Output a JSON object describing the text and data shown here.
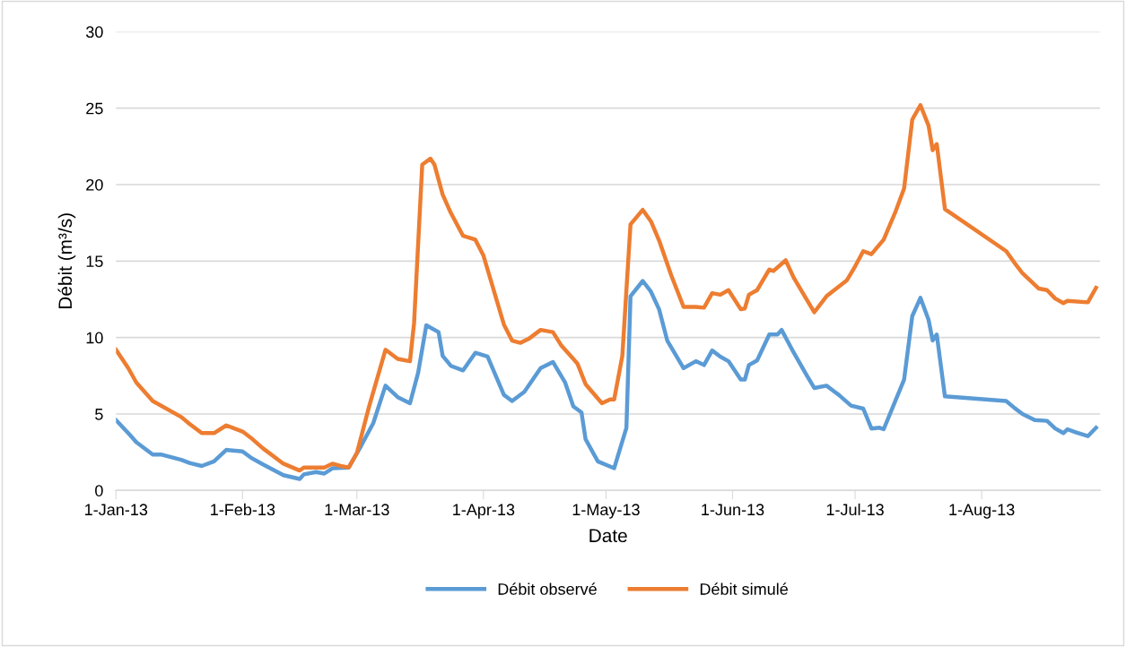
{
  "chart_data": {
    "type": "line",
    "xlabel": "Date",
    "ylabel": "Débit (m³/s)",
    "xlim": [
      "2013-01-01",
      "2013-08-30"
    ],
    "xticks": [
      {
        "value": "2013-01-01",
        "label": "1-Jan-13"
      },
      {
        "value": "2013-02-01",
        "label": "1-Feb-13"
      },
      {
        "value": "2013-03-01",
        "label": "1-Mar-13"
      },
      {
        "value": "2013-04-01",
        "label": "1-Apr-13"
      },
      {
        "value": "2013-05-01",
        "label": "1-May-13"
      },
      {
        "value": "2013-06-01",
        "label": "1-Jun-13"
      },
      {
        "value": "2013-07-01",
        "label": "1-Jul-13"
      },
      {
        "value": "2013-08-01",
        "label": "1-Aug-13"
      }
    ],
    "ylim": [
      0,
      30
    ],
    "yticks": [
      0,
      5,
      10,
      15,
      20,
      25,
      30
    ],
    "grid": "y",
    "legend": "bottom",
    "marker": "none",
    "line_style": "solid",
    "series": [
      {
        "name": "Débit observé",
        "color": "#5b9bd5",
        "x": [
          "2013-01-01",
          "2013-01-04",
          "2013-01-06",
          "2013-01-10",
          "2013-01-12",
          "2013-01-17",
          "2013-01-19",
          "2013-01-22",
          "2013-01-25",
          "2013-01-28",
          "2013-02-01",
          "2013-02-03",
          "2013-02-06",
          "2013-02-11",
          "2013-02-15",
          "2013-02-16",
          "2013-02-19",
          "2013-02-21",
          "2013-02-23",
          "2013-02-27",
          "2013-03-02",
          "2013-03-05",
          "2013-03-08",
          "2013-03-11",
          "2013-03-14",
          "2013-03-16",
          "2013-03-18",
          "2013-03-21",
          "2013-03-22",
          "2013-03-24",
          "2013-03-27",
          "2013-03-30",
          "2013-04-02",
          "2013-04-06",
          "2013-04-08",
          "2013-04-11",
          "2013-04-15",
          "2013-04-18",
          "2013-04-21",
          "2013-04-23",
          "2013-04-25",
          "2013-04-26",
          "2013-04-29",
          "2013-05-03",
          "2013-05-06",
          "2013-05-07",
          "2013-05-10",
          "2013-05-12",
          "2013-05-14",
          "2013-05-16",
          "2013-05-20",
          "2013-05-23",
          "2013-05-25",
          "2013-05-27",
          "2013-05-29",
          "2013-05-31",
          "2013-06-03",
          "2013-06-04",
          "2013-06-05",
          "2013-06-07",
          "2013-06-10",
          "2013-06-12",
          "2013-06-13",
          "2013-06-16",
          "2013-06-19",
          "2013-06-21",
          "2013-06-24",
          "2013-06-26",
          "2013-06-27",
          "2013-06-30",
          "2013-07-03",
          "2013-07-05",
          "2013-07-07",
          "2013-07-08",
          "2013-07-10",
          "2013-07-13",
          "2013-07-15",
          "2013-07-17",
          "2013-07-19",
          "2013-07-20",
          "2013-07-21",
          "2013-07-23",
          "2013-08-07",
          "2013-08-09",
          "2013-08-11",
          "2013-08-14",
          "2013-08-17",
          "2013-08-19",
          "2013-08-21",
          "2013-08-22",
          "2013-08-24",
          "2013-08-27",
          "2013-08-29"
        ],
        "values": [
          4.6,
          3.75,
          3.15,
          2.35,
          2.35,
          2.0,
          1.8,
          1.6,
          1.9,
          2.65,
          2.55,
          2.15,
          1.7,
          1.0,
          0.75,
          1.05,
          1.2,
          1.1,
          1.45,
          1.5,
          2.9,
          4.4,
          6.85,
          6.1,
          5.7,
          7.7,
          10.8,
          10.35,
          8.8,
          8.15,
          7.85,
          9.0,
          8.75,
          6.25,
          5.85,
          6.45,
          8.0,
          8.4,
          7.05,
          5.5,
          5.1,
          3.35,
          1.9,
          1.45,
          4.1,
          12.7,
          13.7,
          13.0,
          11.85,
          9.8,
          8.0,
          8.45,
          8.2,
          9.15,
          8.75,
          8.45,
          7.25,
          7.25,
          8.2,
          8.5,
          10.2,
          10.2,
          10.5,
          9.0,
          7.6,
          6.7,
          6.85,
          6.45,
          6.25,
          5.55,
          5.35,
          4.05,
          4.1,
          4.0,
          5.3,
          7.25,
          11.4,
          12.6,
          11.15,
          9.8,
          10.2,
          6.15,
          5.85,
          5.4,
          5.0,
          4.6,
          4.55,
          4.05,
          3.75,
          4.0,
          3.8,
          3.55,
          4.1
        ]
      },
      {
        "name": "Débit simulé",
        "color": "#ed7d31",
        "x": [
          "2013-01-01",
          "2013-01-04",
          "2013-01-06",
          "2013-01-10",
          "2013-01-17",
          "2013-01-19",
          "2013-01-22",
          "2013-01-25",
          "2013-01-28",
          "2013-02-01",
          "2013-02-03",
          "2013-02-06",
          "2013-02-11",
          "2013-02-15",
          "2013-02-16",
          "2013-02-21",
          "2013-02-23",
          "2013-02-25",
          "2013-02-27",
          "2013-03-01",
          "2013-03-04",
          "2013-03-08",
          "2013-03-11",
          "2013-03-14",
          "2013-03-15",
          "2013-03-17",
          "2013-03-19",
          "2013-03-20",
          "2013-03-22",
          "2013-03-24",
          "2013-03-27",
          "2013-03-30",
          "2013-04-01",
          "2013-04-06",
          "2013-04-08",
          "2013-04-10",
          "2013-04-12",
          "2013-04-15",
          "2013-04-18",
          "2013-04-20",
          "2013-04-23",
          "2013-04-24",
          "2013-04-26",
          "2013-04-30",
          "2013-05-02",
          "2013-05-03",
          "2013-05-05",
          "2013-05-07",
          "2013-05-10",
          "2013-05-12",
          "2013-05-14",
          "2013-05-17",
          "2013-05-20",
          "2013-05-23",
          "2013-05-25",
          "2013-05-27",
          "2013-05-29",
          "2013-05-31",
          "2013-06-03",
          "2013-06-04",
          "2013-06-05",
          "2013-06-07",
          "2013-06-10",
          "2013-06-11",
          "2013-06-14",
          "2013-06-16",
          "2013-06-19",
          "2013-06-21",
          "2013-06-24",
          "2013-06-29",
          "2013-07-01",
          "2013-07-03",
          "2013-07-05",
          "2013-07-08",
          "2013-07-11",
          "2013-07-13",
          "2013-07-15",
          "2013-07-17",
          "2013-07-19",
          "2013-07-20",
          "2013-07-21",
          "2013-07-23",
          "2013-08-07",
          "2013-08-09",
          "2013-08-11",
          "2013-08-15",
          "2013-08-17",
          "2013-08-19",
          "2013-08-21",
          "2013-08-22",
          "2013-08-27",
          "2013-08-29"
        ],
        "values": [
          9.2,
          8.0,
          7.05,
          5.85,
          4.8,
          4.35,
          3.75,
          3.75,
          4.25,
          3.85,
          3.45,
          2.75,
          1.75,
          1.3,
          1.5,
          1.5,
          1.75,
          1.6,
          1.5,
          2.45,
          5.5,
          9.2,
          8.6,
          8.45,
          10.95,
          21.3,
          21.7,
          21.3,
          19.35,
          18.15,
          16.65,
          16.4,
          15.35,
          10.85,
          9.8,
          9.65,
          9.9,
          10.5,
          10.35,
          9.5,
          8.6,
          8.3,
          6.95,
          5.7,
          5.95,
          5.95,
          8.8,
          17.4,
          18.35,
          17.6,
          16.35,
          14.05,
          12.0,
          12.0,
          11.95,
          12.9,
          12.8,
          13.1,
          11.85,
          11.9,
          12.8,
          13.1,
          14.45,
          14.35,
          15.05,
          13.9,
          12.55,
          11.65,
          12.7,
          13.75,
          14.65,
          15.65,
          15.45,
          16.4,
          18.3,
          19.75,
          24.25,
          25.2,
          23.85,
          22.25,
          22.65,
          18.4,
          15.65,
          14.9,
          14.2,
          13.2,
          13.1,
          12.55,
          12.25,
          12.4,
          12.3,
          13.25
        ]
      }
    ]
  }
}
